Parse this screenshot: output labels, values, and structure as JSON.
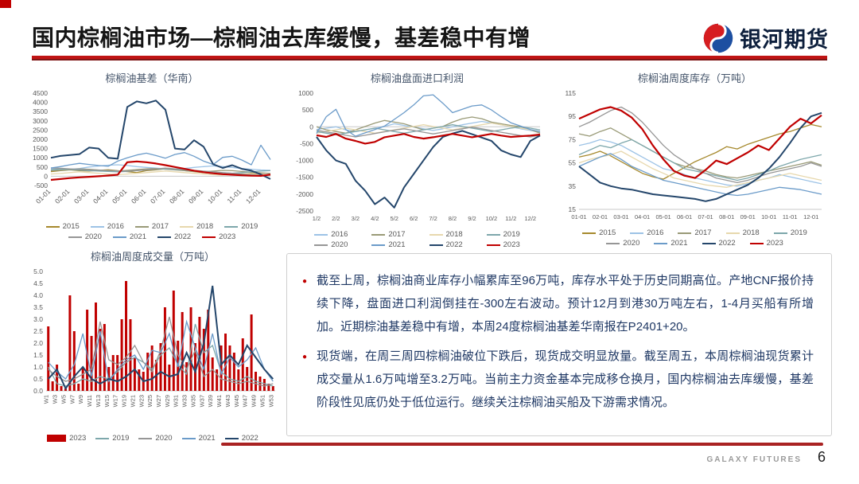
{
  "header": {
    "title": "国内棕榈油市场—棕榈油去库缓慢，基差稳中有增",
    "logo_text": "银河期货"
  },
  "footer": {
    "brand": "GALAXY FUTURES",
    "page": "6"
  },
  "bullets": [
    "截至上周，棕榈油商业库存小幅累库至96万吨，库存水平处于历史同期高位。产地CNF报价持续下降，盘面进口利润倒挂在-300左右波动。预计12月到港30万吨左右，1-4月买船有所增加。近期棕油基差稳中有增，本周24度棕榈油基差华南报在P2401+20。",
    "现货端，在周三周四棕榈油破位下跌后，现货成交明显放量。截至周五，本周棕榈油现货累计成交量从1.6万吨增至3.2万吨。当前主力资金基本完成移仓换月，国内棕榈油去库缓慢，基差阶段性见底仍处于低位运行。继续关注棕榈油买船及下游需求情况。"
  ],
  "colors": {
    "y2015": "#a6892d",
    "y2016": "#9dc3e6",
    "y2017": "#999a77",
    "y2018": "#e7d8ad",
    "y2019": "#7da7ab",
    "y2020": "#969696",
    "y2021": "#6b9bc9",
    "y2022": "#24466b",
    "y2023": "#c00000"
  },
  "chart_data": [
    {
      "type": "line",
      "title": "棕榈油基差（华南）",
      "ylim": [
        -500,
        4500
      ],
      "yticks": [
        4500,
        4000,
        3500,
        3000,
        2500,
        2000,
        1500,
        1000,
        500,
        0,
        -500
      ],
      "axis_y": 0,
      "xlabels": [
        "01-01",
        "02-01",
        "03-01",
        "04-01",
        "05-01",
        "06-01",
        "07-01",
        "08-01",
        "09-01",
        "10-01",
        "11-01",
        "12-01"
      ],
      "series": [
        {
          "name": "2015",
          "color": "#a6892d",
          "values": [
            250,
            300,
            350,
            300,
            280,
            320,
            350,
            300,
            250,
            200,
            300,
            350,
            400,
            380,
            300,
            250,
            200,
            150,
            100,
            80,
            120,
            150,
            100,
            60
          ]
        },
        {
          "name": "2016",
          "color": "#9dc3e6",
          "values": [
            420,
            400,
            380,
            420,
            500,
            550,
            600,
            620,
            580,
            520,
            480,
            440,
            400,
            380,
            420,
            480,
            520,
            560,
            520,
            480,
            420,
            380,
            340,
            320
          ]
        },
        {
          "name": "2017",
          "color": "#999a77",
          "values": [
            300,
            320,
            360,
            400,
            380,
            340,
            300,
            280,
            320,
            360,
            400,
            420,
            380,
            340,
            300,
            260,
            240,
            280,
            320,
            300,
            260,
            220,
            180,
            150
          ]
        },
        {
          "name": "2018",
          "color": "#e7d8ad",
          "values": [
            120,
            150,
            200,
            240,
            200,
            160,
            120,
            80,
            120,
            160,
            200,
            240,
            280,
            240,
            200,
            160,
            120,
            80,
            60,
            100,
            140,
            120,
            80,
            60
          ]
        },
        {
          "name": "2019",
          "color": "#7da7ab",
          "values": [
            350,
            380,
            360,
            330,
            300,
            280,
            260,
            240,
            260,
            300,
            340,
            380,
            400,
            370,
            340,
            300,
            260,
            220,
            180,
            160,
            200,
            240,
            280,
            300
          ]
        },
        {
          "name": "2020",
          "color": "#969696",
          "values": [
            450,
            430,
            400,
            380,
            350,
            330,
            310,
            290,
            270,
            310,
            350,
            400,
            440,
            400,
            360,
            320,
            280,
            240,
            200,
            160,
            120,
            80,
            40,
            60
          ]
        },
        {
          "name": "2021",
          "color": "#6b9bc9",
          "values": [
            450,
            520,
            620,
            700,
            640,
            580,
            540,
            820,
            1000,
            1150,
            1250,
            1120,
            980,
            1180,
            1280,
            1080,
            820,
            640,
            1020,
            1080,
            880,
            620,
            1680,
            900
          ]
        },
        {
          "name": "2022",
          "color": "#24466b",
          "values": [
            1000,
            1100,
            1150,
            1200,
            1550,
            1500,
            1000,
            950,
            3750,
            4050,
            3950,
            4100,
            3600,
            1500,
            1450,
            1950,
            1600,
            650,
            450,
            600,
            400,
            300,
            100,
            -150
          ]
        },
        {
          "name": "2023",
          "color": "#c00000",
          "values": [
            -200,
            -150,
            -100,
            -60,
            -30,
            0,
            40,
            80,
            760,
            800,
            760,
            690,
            600,
            500,
            400,
            300,
            220,
            160,
            110,
            80,
            50,
            30,
            20,
            90
          ]
        }
      ]
    },
    {
      "type": "line",
      "title": "棕榈油盘面进口利润",
      "ylim": [
        -2500,
        1000
      ],
      "yticks": [
        1000,
        500,
        0,
        -500,
        -1000,
        -1500,
        -2000,
        -2500
      ],
      "axis_y": 0,
      "xlabels": [
        "1/2",
        "2/2",
        "3/2",
        "4/2",
        "5/2",
        "6/2",
        "7/2",
        "8/2",
        "9/2",
        "10/2",
        "11/2",
        "12/2"
      ],
      "series": [
        {
          "name": "2016",
          "color": "#9dc3e6",
          "values": [
            -80,
            -40,
            0,
            -90,
            -140,
            -90,
            -40,
            10,
            90,
            40,
            -10,
            -60,
            -110,
            -60,
            0,
            60,
            110,
            160,
            110,
            60,
            0,
            -60,
            -110,
            -160
          ]
        },
        {
          "name": "2017",
          "color": "#999a77",
          "values": [
            0,
            -90,
            -140,
            -190,
            -90,
            10,
            110,
            190,
            140,
            90,
            0,
            -90,
            -40,
            10,
            140,
            240,
            290,
            240,
            140,
            90,
            40,
            0,
            -90,
            -190
          ]
        },
        {
          "name": "2018",
          "color": "#e7d8ad",
          "values": [
            -190,
            -140,
            -90,
            -40,
            -90,
            -140,
            -190,
            -140,
            -90,
            -40,
            10,
            60,
            10,
            -40,
            -90,
            -40,
            10,
            60,
            110,
            60,
            10,
            -40,
            -90,
            -140
          ]
        },
        {
          "name": "2019",
          "color": "#7da7ab",
          "values": [
            -140,
            -190,
            -240,
            -190,
            -140,
            -90,
            -40,
            -90,
            -140,
            -190,
            -140,
            -90,
            -40,
            10,
            60,
            10,
            -40,
            -90,
            -140,
            -90,
            -40,
            0,
            -40,
            -90
          ]
        },
        {
          "name": "2020",
          "color": "#969696",
          "values": [
            -100,
            -150,
            -200,
            -250,
            -300,
            -250,
            -200,
            -150,
            -100,
            -60,
            -110,
            -160,
            -210,
            -160,
            -110,
            -60,
            -10,
            -60,
            -110,
            -160,
            -210,
            -260,
            -300,
            -250
          ]
        },
        {
          "name": "2021",
          "color": "#6b9bc9",
          "values": [
            -200,
            300,
            520,
            -80,
            -280,
            -180,
            -80,
            20,
            220,
            420,
            650,
            920,
            950,
            700,
            420,
            520,
            620,
            650,
            500,
            300,
            120,
            20,
            -80,
            -140
          ]
        },
        {
          "name": "2022",
          "color": "#24466b",
          "values": [
            -300,
            -700,
            -1000,
            -1100,
            -1600,
            -1900,
            -2300,
            -2100,
            -2400,
            -1800,
            -1400,
            -1000,
            -600,
            -300,
            -200,
            -120,
            -220,
            -320,
            -420,
            -700,
            -820,
            -900,
            -420,
            -260
          ]
        },
        {
          "name": "2023",
          "color": "#c00000",
          "values": [
            -250,
            -300,
            -210,
            -350,
            -420,
            -500,
            -450,
            -310,
            -260,
            -210,
            -300,
            -350,
            -310,
            -260,
            -210,
            -260,
            -310,
            -260,
            -210,
            -260,
            -300,
            -280,
            -260,
            -230
          ]
        }
      ]
    },
    {
      "type": "line",
      "title": "棕榈油周度库存（万吨）",
      "ylim": [
        15,
        115
      ],
      "yticks": [
        115,
        95,
        75,
        55,
        35,
        15
      ],
      "axis_y": 15,
      "xlabels": [
        "01-01",
        "02-01",
        "03-01",
        "04-01",
        "05-01",
        "06-01",
        "07-01",
        "08-01",
        "09-01",
        "10-01",
        "11-01",
        "12-01"
      ],
      "series": [
        {
          "name": "2015",
          "color": "#a6892d",
          "values": [
            60,
            62,
            65,
            61,
            56,
            51,
            46,
            43,
            41,
            46,
            51,
            56,
            60,
            64,
            69,
            67,
            71,
            74,
            77,
            80,
            82,
            85,
            88,
            86
          ]
        },
        {
          "name": "2016",
          "color": "#9dc3e6",
          "values": [
            70,
            72,
            75,
            73,
            70,
            65,
            60,
            55,
            50,
            48,
            45,
            42,
            40,
            38,
            36,
            35,
            37,
            40,
            42,
            45,
            43,
            41,
            39,
            37
          ]
        },
        {
          "name": "2017",
          "color": "#999a77",
          "values": [
            80,
            78,
            82,
            85,
            80,
            75,
            70,
            65,
            60,
            55,
            52,
            50,
            48,
            45,
            43,
            42,
            44,
            46,
            48,
            50,
            52,
            54,
            56,
            53
          ]
        },
        {
          "name": "2018",
          "color": "#e7d8ad",
          "values": [
            55,
            58,
            60,
            62,
            65,
            60,
            55,
            50,
            46,
            42,
            40,
            38,
            36,
            35,
            34,
            36,
            38,
            40,
            42,
            44,
            46,
            44,
            42,
            40
          ]
        },
        {
          "name": "2019",
          "color": "#7da7ab",
          "values": [
            62,
            66,
            70,
            68,
            72,
            75,
            70,
            65,
            60,
            55,
            50,
            48,
            46,
            44,
            42,
            40,
            42,
            45,
            48,
            52,
            55,
            58,
            60,
            62
          ]
        },
        {
          "name": "2020",
          "color": "#969696",
          "values": [
            86,
            90,
            95,
            100,
            103,
            98,
            90,
            80,
            70,
            62,
            56,
            50,
            46,
            42,
            40,
            38,
            40,
            43,
            46,
            48,
            50,
            52,
            55,
            52
          ]
        },
        {
          "name": "2021",
          "color": "#6b9bc9",
          "values": [
            52,
            56,
            60,
            63,
            58,
            52,
            48,
            44,
            40,
            38,
            36,
            34,
            32,
            30,
            28,
            27,
            28,
            30,
            32,
            34,
            33,
            32,
            30,
            28
          ]
        },
        {
          "name": "2022",
          "color": "#24466b",
          "values": [
            52,
            45,
            38,
            35,
            33,
            32,
            30,
            28,
            27,
            26,
            25,
            24,
            22,
            24,
            28,
            32,
            36,
            42,
            50,
            60,
            72,
            85,
            95,
            98
          ]
        },
        {
          "name": "2023",
          "color": "#c00000",
          "values": [
            93,
            97,
            101,
            103,
            100,
            94,
            84,
            70,
            58,
            48,
            44,
            42,
            49,
            57,
            54,
            59,
            64,
            70,
            66,
            76,
            86,
            93,
            89,
            96
          ]
        }
      ]
    },
    {
      "type": "bar-line",
      "title": "棕榈油周度成交量（万吨）",
      "ylim": [
        0,
        5
      ],
      "yticks": [
        5.0,
        4.5,
        4.0,
        3.5,
        3.0,
        2.5,
        2.0,
        1.5,
        1.0,
        0.5,
        0.0
      ],
      "axis_y": 0,
      "xlabels": [
        "W1",
        "W3",
        "W5",
        "W7",
        "W9",
        "W11",
        "W13",
        "W15",
        "W17",
        "W19",
        "W21",
        "W23",
        "W25",
        "W27",
        "W29",
        "W31",
        "W33",
        "W35",
        "W37",
        "W39",
        "W41",
        "W43",
        "W45",
        "W47",
        "W49",
        "W51",
        "W53"
      ],
      "bars": {
        "name": "2023",
        "color": "#c00000",
        "values": [
          2.7,
          0.4,
          1.1,
          0.2,
          0.1,
          4.0,
          2.5,
          0.3,
          1.0,
          3.4,
          2.3,
          3.7,
          2.6,
          2.8,
          1.0,
          1.5,
          1.5,
          3.0,
          4.6,
          3.0,
          1.4,
          0.9,
          0.8,
          1.6,
          1.9,
          1.3,
          2.0,
          3.5,
          1.1,
          4.2,
          2.1,
          3.3,
          1.2,
          3.5,
          2.0,
          3.1,
          2.6,
          3.4,
          1.4,
          0.9,
          1.9,
          2.4,
          1.9,
          1.6,
          0.9,
          2.2,
          1.0,
          3.2,
          0.8,
          0.6,
          0.5,
          0.3,
          0.2
        ]
      },
      "series": [
        {
          "name": "2019",
          "color": "#7da7ab",
          "values": [
            1.0,
            0.3,
            0.2,
            0.3,
            0.5,
            0.4,
            0.6,
            0.5,
            0.8,
            1.2,
            1.4,
            1.2,
            0.9,
            1.5,
            1.8,
            1.1,
            0.7,
            2.8,
            1.6,
            1.9,
            0.8,
            0.5,
            0.4,
            0.6,
            0.4,
            0.3,
            0.2
          ]
        },
        {
          "name": "2020",
          "color": "#969696",
          "values": [
            0.9,
            0.6,
            0.4,
            0.5,
            0.7,
            0.9,
            2.9,
            1.3,
            1.1,
            1.4,
            1.9,
            1.2,
            0.8,
            1.7,
            3.1,
            1.5,
            0.9,
            1.7,
            0.6,
            0.9,
            0.5,
            0.4,
            0.3,
            0.4,
            0.3,
            0.2,
            0.3
          ]
        },
        {
          "name": "2021",
          "color": "#6b9bc9",
          "values": [
            1.2,
            0.8,
            0.5,
            1.1,
            2.4,
            0.6,
            2.5,
            0.4,
            0.9,
            1.3,
            1.5,
            0.9,
            1.7,
            1.6,
            2.4,
            1.0,
            2.9,
            1.8,
            0.9,
            2.4,
            0.7,
            1.4,
            1.0,
            1.3,
            1.8,
            0.9,
            0.4
          ]
        },
        {
          "name": "2022",
          "color": "#24466b",
          "values": [
            0.5,
            0.9,
            0.1,
            0.6,
            1.0,
            0.5,
            0.3,
            0.5,
            0.4,
            0.6,
            0.9,
            0.4,
            0.5,
            0.8,
            0.6,
            0.7,
            1.6,
            0.8,
            2.0,
            4.4,
            1.1,
            1.5,
            1.1,
            1.9,
            1.4,
            0.9,
            0.5
          ]
        }
      ]
    }
  ]
}
